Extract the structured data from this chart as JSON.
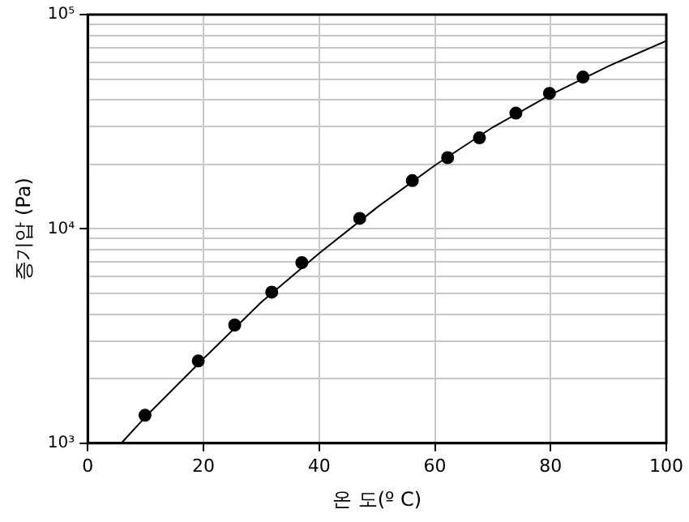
{
  "chart_data": {
    "type": "scatter",
    "xlabel": "온 도(º C)",
    "ylabel": "증기압 (Pa)",
    "log": "y",
    "grid": true,
    "legend": false,
    "xlim": [
      0,
      100
    ],
    "xticks": [
      0,
      20,
      40,
      60,
      80,
      100
    ],
    "ylim": [
      1000,
      100000
    ],
    "yticks": [
      {
        "value": 1000,
        "label": "10³"
      },
      {
        "value": 2000,
        "label": null
      },
      {
        "value": 3000,
        "label": null
      },
      {
        "value": 4000,
        "label": null
      },
      {
        "value": 5000,
        "label": null
      },
      {
        "value": 6000,
        "label": null
      },
      {
        "value": 7000,
        "label": null
      },
      {
        "value": 8000,
        "label": null
      },
      {
        "value": 9000,
        "label": null
      },
      {
        "value": 10000,
        "label": "10⁴"
      },
      {
        "value": 20000,
        "label": null
      },
      {
        "value": 30000,
        "label": null
      },
      {
        "value": 40000,
        "label": null
      },
      {
        "value": 50000,
        "label": null
      },
      {
        "value": 60000,
        "label": null
      },
      {
        "value": 70000,
        "label": null
      },
      {
        "value": 80000,
        "label": null
      },
      {
        "value": 90000,
        "label": null
      },
      {
        "value": 100000,
        "label": "10⁵"
      }
    ],
    "series": [
      {
        "color": "#000000",
        "marker": "circle",
        "x": [
          9.9,
          19.1,
          25.4,
          31.8,
          37.0,
          47.0,
          56.1,
          62.2,
          67.7,
          74.0,
          79.8,
          85.6
        ],
        "values": [
          1350,
          2420,
          3560,
          5070,
          6960,
          11200,
          16800,
          21500,
          26600,
          34700,
          42900,
          51100
        ]
      },
      {
        "type": "line",
        "color": "#000000",
        "marker": "none",
        "line_style": "solid",
        "x": [
          5.8,
          10,
          20,
          30,
          40,
          50,
          60,
          70,
          80,
          90,
          100
        ],
        "values": [
          1000,
          1330,
          2480,
          4550,
          7700,
          12600,
          19800,
          29800,
          42300,
          57500,
          75400
        ]
      }
    ]
  }
}
